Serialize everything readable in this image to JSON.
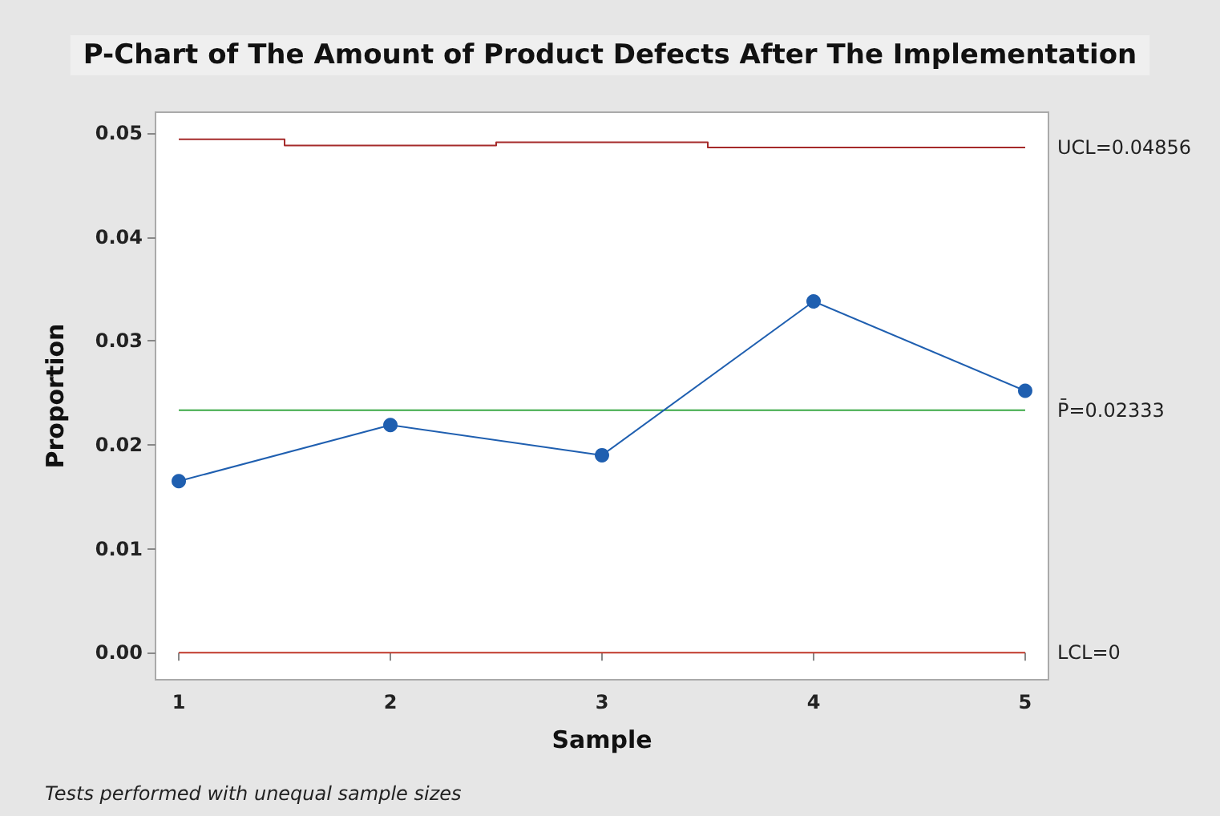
{
  "chart_data": {
    "type": "line",
    "title": "P-Chart of The Amount of Product Defects After The Implementation",
    "xlabel": "Sample",
    "ylabel": "Proportion",
    "x": [
      1,
      2,
      3,
      4,
      5
    ],
    "series": [
      {
        "color": "#1f5fb0",
        "values": [
          0.0165,
          0.0219,
          0.019,
          0.0338,
          0.0252
        ],
        "marker": "circle"
      },
      {
        "type": "step",
        "name": "UCL=0.04856",
        "color": "#a52a2a",
        "values": [
          0.0494,
          0.0488,
          0.0491,
          0.0486,
          0.0486
        ],
        "marker": "none"
      }
    ],
    "ref_lines": [
      {
        "axis": "y",
        "value": 0.02333,
        "label": "P̄=0.02333",
        "color": "#3aa845"
      },
      {
        "axis": "y",
        "value": 0,
        "label": "LCL=0",
        "color": "#c0392b"
      }
    ],
    "xlim": [
      0.89,
      5.11
    ],
    "xticks": [
      1,
      2,
      3,
      4,
      5
    ],
    "ylim": [
      -0.0026,
      0.052
    ],
    "yticks": [
      {
        "value": 0,
        "label": "0.00"
      },
      {
        "value": 0.01,
        "label": "0.01"
      },
      {
        "value": 0.02,
        "label": "0.02"
      },
      {
        "value": 0.03,
        "label": "0.03"
      },
      {
        "value": 0.04,
        "label": "0.04"
      },
      {
        "value": 0.05,
        "label": "0.05"
      }
    ],
    "grid": false,
    "legend": false,
    "annotations": [
      "Tests performed with unequal sample sizes"
    ]
  }
}
